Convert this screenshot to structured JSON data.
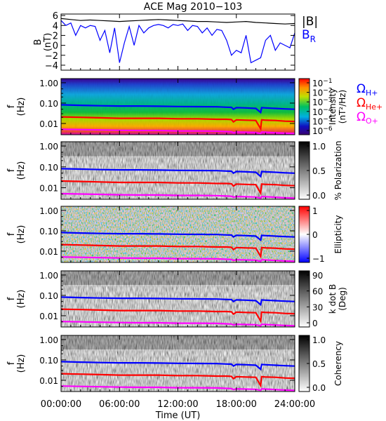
{
  "chart_data": [
    {
      "type": "line",
      "title": "ACE Mag 2010−103",
      "ylabel": "B",
      "yunit": "(nT)",
      "yticks": [
        "6",
        "4",
        "2",
        "0",
        "−2",
        "−4"
      ],
      "ylim": [
        -5,
        6.3
      ],
      "series": [
        {
          "name": "|B|",
          "color": "#000000",
          "x": [
            0,
            1,
            2,
            3,
            4,
            5,
            6,
            7,
            8,
            9,
            10,
            11,
            12,
            13,
            14,
            15,
            16,
            17,
            18,
            19,
            20,
            21,
            22,
            23,
            24
          ],
          "values": [
            5.4,
            5.2,
            5.0,
            5.1,
            5.0,
            4.9,
            4.8,
            4.9,
            5.0,
            5.1,
            5.2,
            5.1,
            5.0,
            4.9,
            4.8,
            4.8,
            4.7,
            4.6,
            4.7,
            4.8,
            4.6,
            4.5,
            4.4,
            4.3,
            4.4
          ]
        },
        {
          "name": "B",
          "subscript": "R",
          "color": "#0000ff",
          "x": [
            0,
            0.5,
            1,
            1.5,
            2,
            2.5,
            3,
            3.5,
            4,
            4.5,
            5,
            5.5,
            6,
            6.5,
            7,
            7.5,
            8,
            8.5,
            9,
            9.5,
            10,
            10.5,
            11,
            11.5,
            12,
            12.5,
            13,
            13.5,
            14,
            14.5,
            15,
            15.5,
            16,
            16.5,
            17,
            17.5,
            18,
            18.5,
            19,
            19.5,
            20,
            20.5,
            21,
            21.5,
            22,
            22.5,
            23,
            23.5,
            24
          ],
          "values": [
            5.0,
            4.0,
            4.5,
            2.0,
            4.0,
            3.5,
            4.0,
            3.8,
            1.0,
            3.0,
            -1.5,
            3.5,
            -3.5,
            0.5,
            3.8,
            0.0,
            4.0,
            2.5,
            3.5,
            4.0,
            4.2,
            4.0,
            3.5,
            4.2,
            4.0,
            4.3,
            3.0,
            4.0,
            3.8,
            2.5,
            3.5,
            2.0,
            3.2,
            3.0,
            1.0,
            -2.0,
            -1.0,
            -1.5,
            2.0,
            -3.5,
            -3.0,
            -2.5,
            1.0,
            2.0,
            -1.0,
            0.5,
            0.0,
            -0.5,
            2.5
          ]
        }
      ]
    },
    {
      "type": "heatmap",
      "ylabel": "f",
      "yunit": "(Hz)",
      "yticks": [
        "1.00",
        "0.10",
        "0.01"
      ],
      "cbar_label": "Intensity",
      "cbar_unit": "(nT²/Hz)",
      "cbar_ticks": [
        {
          "base": "10",
          "exp": "−1"
        },
        {
          "base": "10",
          "exp": "−2"
        },
        {
          "base": "10",
          "exp": "−3"
        },
        {
          "base": "10",
          "exp": "−4"
        },
        {
          "base": "10",
          "exp": "−5"
        },
        {
          "base": "10",
          "exp": "−6"
        }
      ],
      "colormap": "rainbow"
    },
    {
      "type": "heatmap",
      "ylabel": "f",
      "yunit": "(Hz)",
      "yticks": [
        "1.00",
        "0.10",
        "0.01"
      ],
      "cbar_label": "% Polarization",
      "cbar_ticks": [
        "1.0",
        "0.5",
        "0.0"
      ],
      "colormap": "gray"
    },
    {
      "type": "heatmap",
      "ylabel": "f",
      "yunit": "(Hz)",
      "yticks": [
        "1.00",
        "0.10",
        "0.01"
      ],
      "cbar_label": "Ellipticity",
      "cbar_ticks": [
        "1",
        "0",
        "−1"
      ],
      "colormap": "blue-white-red"
    },
    {
      "type": "heatmap",
      "ylabel": "f",
      "yunit": "(Hz)",
      "yticks": [
        "1.00",
        "0.10",
        "0.01"
      ],
      "cbar_label": "k dot B",
      "cbar_unit": "(Deg)",
      "cbar_ticks": [
        "90",
        "60",
        "30",
        "0"
      ],
      "colormap": "gray"
    },
    {
      "type": "heatmap",
      "ylabel": "f",
      "yunit": "(Hz)",
      "yticks": [
        "1.00",
        "0.10",
        "0.01"
      ],
      "cbar_label": "Coherency",
      "cbar_ticks": [
        "1.0",
        "0.5",
        "0.0"
      ],
      "colormap": "gray"
    }
  ],
  "gyro_lines": [
    {
      "symbol": "Ω",
      "sub": "H+",
      "color": "#0000ff",
      "x": [
        0,
        2,
        4,
        6,
        8,
        10,
        12,
        14,
        16,
        17,
        17.5,
        17.7,
        18,
        19,
        20,
        20.5,
        20.6,
        21,
        22,
        23,
        24
      ],
      "values": [
        0.082,
        0.078,
        0.074,
        0.072,
        0.072,
        0.07,
        0.068,
        0.067,
        0.066,
        0.063,
        0.062,
        0.05,
        0.06,
        0.058,
        0.055,
        0.035,
        0.06,
        0.058,
        0.055,
        0.052,
        0.05
      ]
    },
    {
      "symbol": "Ω",
      "sub": "He+",
      "color": "#ff0000",
      "x": [
        0,
        2,
        4,
        6,
        8,
        10,
        12,
        14,
        16,
        17,
        17.5,
        17.7,
        18,
        19,
        20,
        20.5,
        20.6,
        21,
        22,
        23,
        24
      ],
      "values": [
        0.021,
        0.02,
        0.019,
        0.018,
        0.018,
        0.018,
        0.017,
        0.017,
        0.016,
        0.016,
        0.0155,
        0.012,
        0.015,
        0.0145,
        0.014,
        0.0055,
        0.015,
        0.0145,
        0.014,
        0.013,
        0.0125
      ]
    },
    {
      "symbol": "Ω",
      "sub": "O+",
      "color": "#ff00ff",
      "x": [
        0,
        2,
        4,
        6,
        8,
        10,
        12,
        14,
        16,
        17,
        17.5,
        17.7,
        18,
        19,
        20,
        20.5,
        20.6,
        21,
        22,
        23,
        24
      ],
      "values": [
        0.0052,
        0.005,
        0.0048,
        0.0046,
        0.0045,
        0.0045,
        0.0043,
        0.0043,
        0.0042,
        0.004,
        0.0039,
        0.0035,
        0.0038,
        0.0037,
        0.0036,
        0.0032,
        0.0038,
        0.0037,
        0.0035,
        0.0033,
        0.0032
      ]
    }
  ],
  "xaxis": {
    "label": "Time (UT)",
    "ticks": [
      "00:00:00",
      "06:00:00",
      "12:00:00",
      "18:00:00",
      "24:00:00"
    ],
    "tick_values": [
      0,
      6,
      12,
      18,
      24
    ]
  }
}
